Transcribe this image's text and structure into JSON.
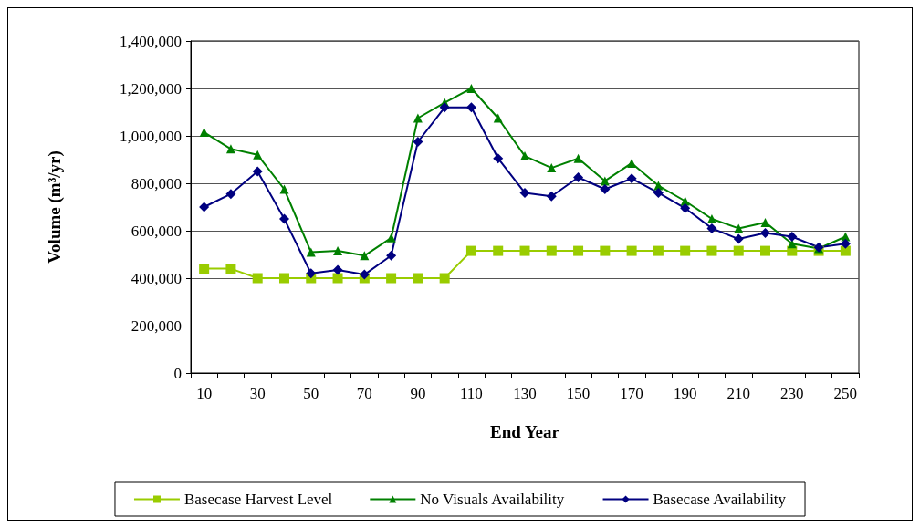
{
  "chart_data": {
    "type": "line",
    "xlabel": "End Year",
    "ylabel": "Volume (m³/yr)",
    "categories": [
      "10",
      null,
      "30",
      null,
      "50",
      null,
      "70",
      null,
      "90",
      null,
      "110",
      null,
      "130",
      null,
      "150",
      null,
      "170",
      null,
      "190",
      null,
      "210",
      null,
      "230",
      null,
      "250"
    ],
    "series": [
      {
        "name": "Basecase Harvest Level",
        "color": "#99cc00",
        "marker": "square",
        "values": [
          440000,
          440000,
          400000,
          400000,
          400000,
          400000,
          400000,
          400000,
          400000,
          400000,
          515000,
          515000,
          515000,
          515000,
          515000,
          515000,
          515000,
          515000,
          515000,
          515000,
          515000,
          515000,
          515000,
          515000,
          515000
        ]
      },
      {
        "name": "No Visuals Availability",
        "color": "#008000",
        "marker": "triangle",
        "values": [
          1015000,
          945000,
          920000,
          775000,
          510000,
          515000,
          495000,
          570000,
          1075000,
          1140000,
          1200000,
          1075000,
          915000,
          865000,
          905000,
          810000,
          885000,
          790000,
          725000,
          650000,
          610000,
          635000,
          545000,
          525000,
          575000
        ]
      },
      {
        "name": "Basecase Availability",
        "color": "#000080",
        "marker": "diamond",
        "values": [
          700000,
          755000,
          850000,
          650000,
          420000,
          435000,
          415000,
          495000,
          975000,
          1120000,
          1120000,
          905000,
          760000,
          745000,
          825000,
          775000,
          820000,
          760000,
          695000,
          610000,
          565000,
          590000,
          575000,
          530000,
          545000
        ]
      }
    ],
    "ylim": [
      0,
      1400000
    ],
    "yticks": [
      0,
      {
        "value": 200000,
        "label": "200,000"
      },
      {
        "value": 400000,
        "label": "400,000"
      },
      {
        "value": 600000,
        "label": "600,000"
      },
      {
        "value": 800000,
        "label": "800,000"
      },
      {
        "value": 1000000,
        "label": "1,000,000"
      },
      {
        "value": 1200000,
        "label": "1,200,000"
      },
      {
        "value": 1400000,
        "label": "1,400,000"
      }
    ],
    "grid": "y",
    "legend": "bottom",
    "line_style": "solid"
  }
}
